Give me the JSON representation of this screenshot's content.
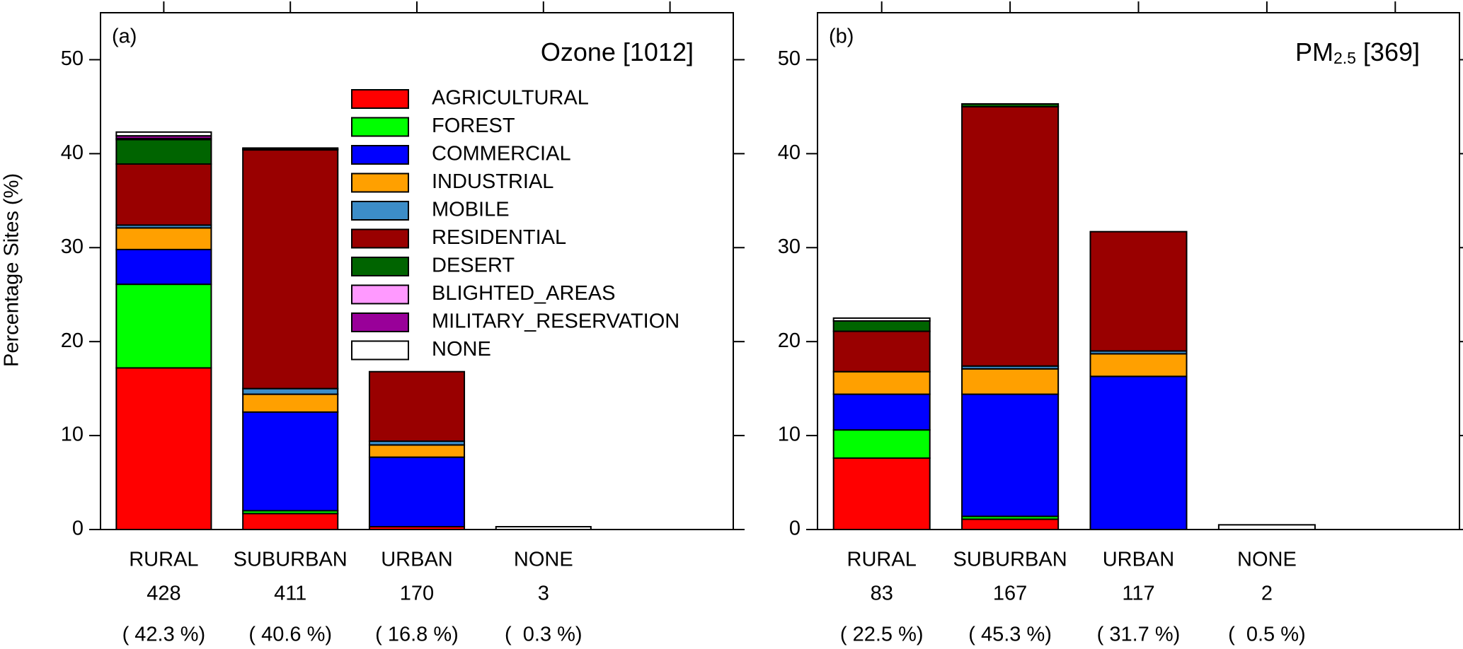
{
  "chart_data": [
    {
      "type": "bar",
      "stacked": true,
      "title": "(a)",
      "annotation": [
        {
          "text": "Ozone [1012]"
        }
      ],
      "ylabel": "Percentage Sites (%)",
      "categories": [
        "RURAL",
        "SUBURBAN",
        "URBAN",
        "NONE"
      ],
      "site_counts": [
        428,
        411,
        170,
        3
      ],
      "totals": {
        "values": [
          42.3,
          40.6,
          16.8,
          0.3
        ],
        "value_labels": [
          "( 42.3 %)",
          "( 40.6 %)",
          "( 16.8 %)",
          "(  0.3 %)"
        ]
      },
      "ylim": [
        0,
        55
      ],
      "yticks": [
        0,
        10,
        20,
        30,
        40,
        50
      ],
      "legend": "upper-right",
      "series": [
        {
          "name": "AGRICULTURAL",
          "color": "#ff0000",
          "values": [
            17.2,
            1.7,
            0.3,
            0
          ]
        },
        {
          "name": "FOREST",
          "color": "#00ff00",
          "values": [
            8.9,
            0.3,
            0,
            0
          ]
        },
        {
          "name": "COMMERCIAL",
          "color": "#0000ff",
          "values": [
            3.7,
            10.5,
            7.4,
            0
          ]
        },
        {
          "name": "INDUSTRIAL",
          "color": "#ffa000",
          "values": [
            2.3,
            1.9,
            1.3,
            0
          ]
        },
        {
          "name": "MOBILE",
          "color": "#3c8dc8",
          "values": [
            0.3,
            0.6,
            0.4,
            0
          ]
        },
        {
          "name": "RESIDENTIAL",
          "color": "#990000",
          "values": [
            6.5,
            25.4,
            7.4,
            0
          ]
        },
        {
          "name": "DESERT",
          "color": "#006400",
          "values": [
            2.6,
            0.1,
            0,
            0
          ]
        },
        {
          "name": "BLIGHTED_AREAS",
          "color": "#ff99ff",
          "values": [
            0.1,
            0,
            0,
            0
          ]
        },
        {
          "name": "MILITARY_RESERVATION",
          "color": "#990099",
          "values": [
            0.3,
            0,
            0,
            0
          ]
        },
        {
          "name": "NONE",
          "color": "#ffffff",
          "values": [
            0.4,
            0.1,
            0,
            0.3
          ]
        }
      ]
    },
    {
      "type": "bar",
      "stacked": true,
      "title": "(b)",
      "annotation": [
        {
          "text": "PM"
        },
        {
          "text": "2.5",
          "subscript": true
        },
        {
          "text": " [369]"
        }
      ],
      "categories": [
        "RURAL",
        "SUBURBAN",
        "URBAN",
        "NONE"
      ],
      "site_counts": [
        83,
        167,
        117,
        2
      ],
      "totals": {
        "values": [
          22.5,
          45.3,
          31.7,
          0.5
        ],
        "value_labels": [
          "( 22.5 %)",
          "( 45.3 %)",
          "( 31.7 %)",
          "(  0.5 %)"
        ]
      },
      "ylim": [
        0,
        55
      ],
      "yticks": [
        0,
        10,
        20,
        30,
        40,
        50
      ],
      "series": [
        {
          "color": "#ff0000",
          "values": [
            7.6,
            1.1,
            0,
            0
          ]
        },
        {
          "color": "#00ff00",
          "values": [
            3.0,
            0.3,
            0,
            0
          ]
        },
        {
          "color": "#0000ff",
          "values": [
            3.8,
            13.0,
            16.3,
            0
          ]
        },
        {
          "color": "#ffa000",
          "values": [
            2.4,
            2.7,
            2.4,
            0
          ]
        },
        {
          "color": "#3c8dc8",
          "values": [
            0,
            0.3,
            0.3,
            0
          ]
        },
        {
          "color": "#990000",
          "values": [
            4.3,
            27.6,
            12.7,
            0
          ]
        },
        {
          "color": "#006400",
          "values": [
            1.1,
            0.3,
            0,
            0
          ]
        },
        {
          "color": "#ff99ff",
          "values": [
            0,
            0,
            0,
            0
          ]
        },
        {
          "color": "#990099",
          "values": [
            0,
            0,
            0,
            0
          ]
        },
        {
          "color": "#ffffff",
          "values": [
            0.3,
            0,
            0,
            0.5
          ]
        }
      ]
    }
  ]
}
